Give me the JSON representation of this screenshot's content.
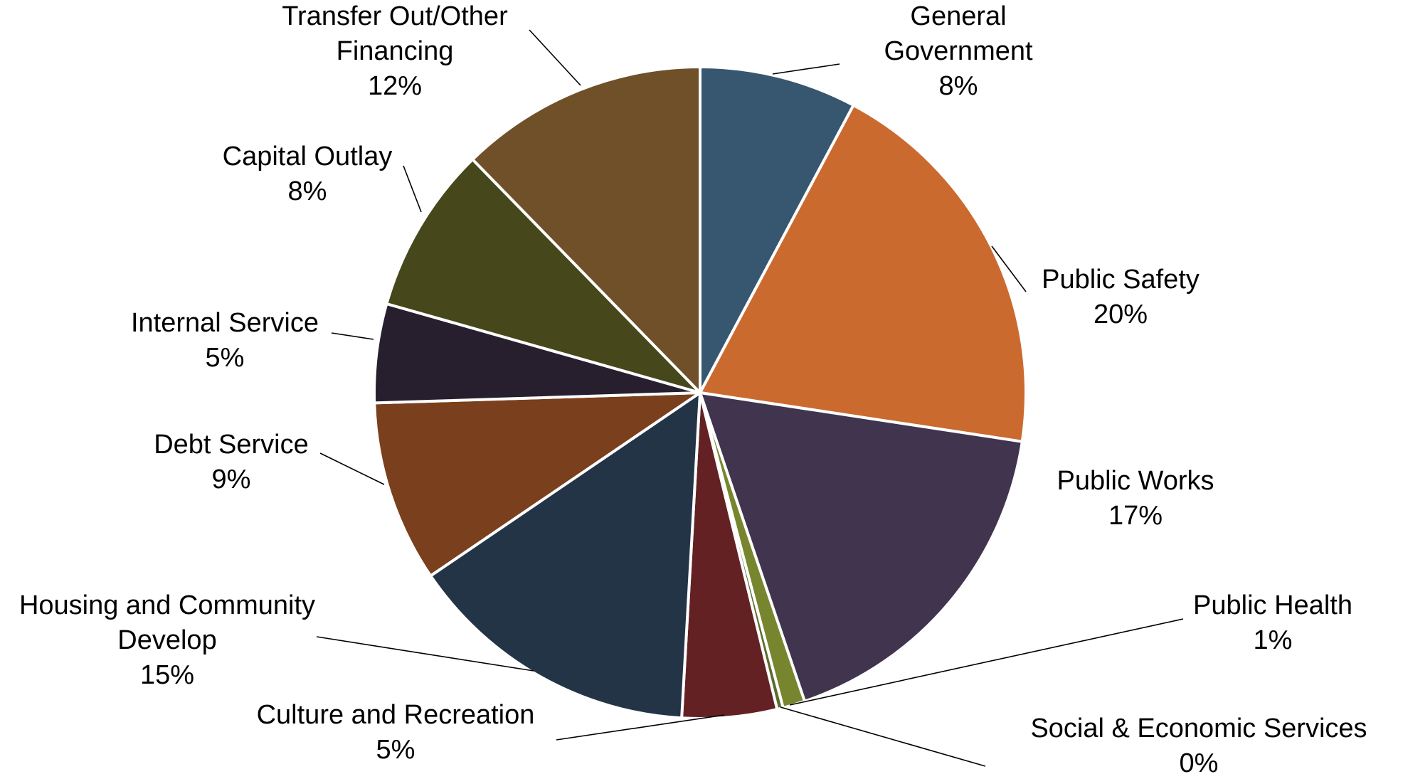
{
  "chart_data": {
    "type": "pie",
    "title": "",
    "start_angle_deg": 0,
    "direction": "clockwise",
    "slices": [
      {
        "name": "General Government",
        "label_lines": [
          "General",
          "Government"
        ],
        "pct_label": "8%",
        "value": 7.8,
        "color": "#37566F"
      },
      {
        "name": "Public Safety",
        "label_lines": [
          "Public Safety"
        ],
        "pct_label": "20%",
        "value": 19.6,
        "color": "#CB6A2F"
      },
      {
        "name": "Public Works",
        "label_lines": [
          "Public Works"
        ],
        "pct_label": "17%",
        "value": 17.4,
        "color": "#41344E"
      },
      {
        "name": "Public Health",
        "label_lines": [
          "Public Health"
        ],
        "pct_label": "1%",
        "value": 1.1,
        "color": "#77862E"
      },
      {
        "name": "Social & Economic Services",
        "label_lines": [
          "Social & Economic Services"
        ],
        "pct_label": "0%",
        "value": 0.3,
        "color": "#5B6D2A"
      },
      {
        "name": "Culture and Recreation",
        "label_lines": [
          "Culture and Recreation"
        ],
        "pct_label": "5%",
        "value": 4.7,
        "color": "#642124"
      },
      {
        "name": "Housing and Community Develop",
        "label_lines": [
          "Housing and Community",
          "Develop"
        ],
        "pct_label": "15%",
        "value": 14.6,
        "color": "#233447"
      },
      {
        "name": "Debt Service",
        "label_lines": [
          "Debt Service"
        ],
        "pct_label": "9%",
        "value": 9.0,
        "color": "#7A3F1C"
      },
      {
        "name": "Internal Service",
        "label_lines": [
          "Internal Service"
        ],
        "pct_label": "5%",
        "value": 4.9,
        "color": "#271F2E"
      },
      {
        "name": "Capital Outlay",
        "label_lines": [
          "Capital Outlay"
        ],
        "pct_label": "8%",
        "value": 8.3,
        "color": "#47471C"
      },
      {
        "name": "Transfer Out/Other Financing",
        "label_lines": [
          "Transfer Out/Other",
          "Financing"
        ],
        "pct_label": "12%",
        "value": 12.3,
        "color": "#705029"
      }
    ]
  }
}
